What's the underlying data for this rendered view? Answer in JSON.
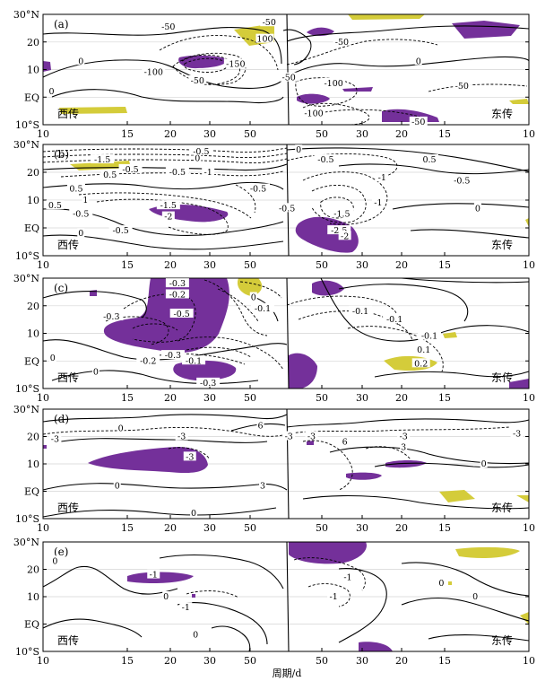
{
  "chart_data": {
    "type": "heatmap",
    "xlabel": "周期/d",
    "colors": {
      "positive_shade": "#d4cc3a",
      "negative_shade": "#74309a",
      "grid": "#d4d4d4"
    },
    "x_ticks_west": [
      "10",
      "15",
      "20",
      "30",
      "50"
    ],
    "x_ticks_east": [
      "50",
      "30",
      "20",
      "15",
      "10"
    ],
    "y_ticks": [
      "30°N",
      "20",
      "10",
      "EQ",
      "10°S"
    ],
    "west_label": "西传",
    "east_label": "东传",
    "panels": [
      {
        "tag": "(a)",
        "contour_labels": [
          {
            "v": "-50",
            "side": "w",
            "period": 27,
            "lat": 25.5
          },
          {
            "v": "-50",
            "side": "w",
            "period": 60,
            "lat": 27
          },
          {
            "v": "100",
            "side": "w",
            "period": 58,
            "lat": 21
          },
          {
            "v": "0",
            "side": "w",
            "period": 13.5,
            "lat": 13
          },
          {
            "v": "-150",
            "side": "w",
            "period": 46,
            "lat": 12
          },
          {
            "v": "-100",
            "side": "w",
            "period": 24,
            "lat": 9
          },
          {
            "v": "-50",
            "side": "w",
            "period": 34,
            "lat": 6
          },
          {
            "v": "0",
            "side": "w",
            "period": 10.7,
            "lat": 2
          },
          {
            "v": "-50",
            "side": "e",
            "period": 44,
            "lat": 20
          },
          {
            "v": "0",
            "side": "e",
            "period": 24,
            "lat": 13
          },
          {
            "v": "-50",
            "side": "e",
            "period": 67,
            "lat": 7
          },
          {
            "v": "-100",
            "side": "e",
            "period": 47,
            "lat": 5
          },
          {
            "v": "-50",
            "side": "e",
            "period": 17,
            "lat": 4
          },
          {
            "v": "-100",
            "side": "e",
            "period": 55,
            "lat": -6
          },
          {
            "v": "-50",
            "side": "e",
            "period": 24,
            "lat": -9
          }
        ]
      },
      {
        "tag": "(b)",
        "contour_labels": [
          {
            "v": "-1.5",
            "side": "w",
            "period": 16,
            "lat": 24.5
          },
          {
            "v": "0.5",
            "side": "w",
            "period": 17,
            "lat": 19
          },
          {
            "v": "0",
            "side": "w",
            "period": 34,
            "lat": 25
          },
          {
            "v": "-0.5",
            "side": "w",
            "period": 35,
            "lat": 27.5
          },
          {
            "v": "-1",
            "side": "w",
            "period": 37,
            "lat": 20
          },
          {
            "v": "-0.5",
            "side": "w",
            "period": 20,
            "lat": 21
          },
          {
            "v": "-0.5",
            "side": "w",
            "period": 29,
            "lat": 20
          },
          {
            "v": "0.5",
            "side": "w",
            "period": 13,
            "lat": 14
          },
          {
            "v": "-0.5",
            "side": "w",
            "period": 55,
            "lat": 14
          },
          {
            "v": "1",
            "side": "w",
            "period": 14,
            "lat": 10
          },
          {
            "v": "0.5",
            "side": "w",
            "period": 11,
            "lat": 8
          },
          {
            "v": "-0.5",
            "side": "w",
            "period": 13.5,
            "lat": 5
          },
          {
            "v": "-1.5",
            "side": "w",
            "period": 27,
            "lat": 8
          },
          {
            "v": "-2",
            "side": "w",
            "period": 27,
            "lat": 4
          },
          {
            "v": "-0.5",
            "side": "w",
            "period": 18.5,
            "lat": -1
          },
          {
            "v": "0",
            "side": "w",
            "period": 13.5,
            "lat": -2
          },
          {
            "v": "0",
            "side": "e",
            "period": 62,
            "lat": 28
          },
          {
            "v": "-0.5",
            "side": "e",
            "period": 50,
            "lat": 24.5
          },
          {
            "v": "0.5",
            "side": "e",
            "period": 22,
            "lat": 24.5
          },
          {
            "v": "-1",
            "side": "e",
            "period": 32,
            "lat": 18
          },
          {
            "v": "-0.5",
            "side": "e",
            "period": 17,
            "lat": 17
          },
          {
            "v": "0",
            "side": "e",
            "period": 15,
            "lat": 7
          },
          {
            "v": "-0.5",
            "side": "e",
            "period": 68,
            "lat": 7
          },
          {
            "v": "-1.5",
            "side": "e",
            "period": 44,
            "lat": 5
          },
          {
            "v": "-1",
            "side": "e",
            "period": 33,
            "lat": 9
          },
          {
            "v": "-2.5",
            "side": "e",
            "period": 45,
            "lat": -1
          },
          {
            "v": "-2",
            "side": "e",
            "period": 43,
            "lat": -3
          }
        ]
      },
      {
        "tag": "(c)",
        "contour_labels": [
          {
            "v": "-0.3",
            "side": "w",
            "period": 29,
            "lat": 28
          },
          {
            "v": "-0.2",
            "side": "w",
            "period": 29,
            "lat": 24
          },
          {
            "v": "0",
            "side": "w",
            "period": 53,
            "lat": 23
          },
          {
            "v": "-0.1",
            "side": "w",
            "period": 57,
            "lat": 19
          },
          {
            "v": "-0.3",
            "side": "w",
            "period": 17.2,
            "lat": 16
          },
          {
            "v": "-0.5",
            "side": "w",
            "period": 30,
            "lat": 17
          },
          {
            "v": "-0.3",
            "side": "w",
            "period": 28,
            "lat": 2
          },
          {
            "v": "-0.2",
            "side": "w",
            "period": 23,
            "lat": 0
          },
          {
            "v": "-0.1",
            "side": "w",
            "period": 33,
            "lat": 0
          },
          {
            "v": "0",
            "side": "w",
            "period": 15.2,
            "lat": -4
          },
          {
            "v": "0",
            "side": "w",
            "period": 10.8,
            "lat": 1
          },
          {
            "v": "-0.3",
            "side": "w",
            "period": 37,
            "lat": -8
          },
          {
            "v": "-0.1",
            "side": "e",
            "period": 38,
            "lat": 18
          },
          {
            "v": "-0.1",
            "side": "e",
            "period": 29,
            "lat": 15
          },
          {
            "v": "-0.1",
            "side": "e",
            "period": 22,
            "lat": 9
          },
          {
            "v": "0.1",
            "side": "e",
            "period": 23,
            "lat": 4
          },
          {
            "v": "0.2",
            "side": "e",
            "period": 23.5,
            "lat": -1
          }
        ]
      },
      {
        "tag": "(d)",
        "contour_labels": [
          {
            "v": "0",
            "side": "w",
            "period": 18.5,
            "lat": 23
          },
          {
            "v": "-3",
            "side": "w",
            "period": 11,
            "lat": 19
          },
          {
            "v": "-3",
            "side": "w",
            "period": 30,
            "lat": 20
          },
          {
            "v": "6",
            "side": "w",
            "period": 56,
            "lat": 24
          },
          {
            "v": "-3",
            "side": "w",
            "period": 32,
            "lat": 12.5
          },
          {
            "v": "0",
            "side": "w",
            "period": 18,
            "lat": 2
          },
          {
            "v": "3",
            "side": "w",
            "period": 57,
            "lat": 2
          },
          {
            "v": "0",
            "side": "w",
            "period": 33,
            "lat": -8
          },
          {
            "v": "-3",
            "side": "e",
            "period": 67,
            "lat": 20
          },
          {
            "v": "-3",
            "side": "e",
            "period": 56,
            "lat": 20
          },
          {
            "v": "-3",
            "side": "e",
            "period": 27,
            "lat": 20
          },
          {
            "v": "6",
            "side": "e",
            "period": 43,
            "lat": 18
          },
          {
            "v": "3",
            "side": "e",
            "period": 27,
            "lat": 16
          },
          {
            "v": "-3",
            "side": "e",
            "period": 11,
            "lat": 21
          },
          {
            "v": "0",
            "side": "e",
            "period": 14.3,
            "lat": 10
          }
        ]
      },
      {
        "tag": "(e)",
        "contour_labels": [
          {
            "v": "0",
            "side": "w",
            "period": 11,
            "lat": 23
          },
          {
            "v": "-1",
            "side": "w",
            "period": 24,
            "lat": 18
          },
          {
            "v": "0",
            "side": "w",
            "period": 26.5,
            "lat": 10
          },
          {
            "v": "-1",
            "side": "w",
            "period": 31,
            "lat": 6
          },
          {
            "v": "0",
            "side": "w",
            "period": 33.5,
            "lat": -4
          },
          {
            "v": "-1",
            "side": "e",
            "period": 42,
            "lat": 17
          },
          {
            "v": "0",
            "side": "e",
            "period": 20,
            "lat": 15
          },
          {
            "v": "-1",
            "side": "e",
            "period": 47,
            "lat": 10
          },
          {
            "v": "0",
            "side": "e",
            "period": 15.3,
            "lat": 10
          }
        ]
      }
    ]
  }
}
